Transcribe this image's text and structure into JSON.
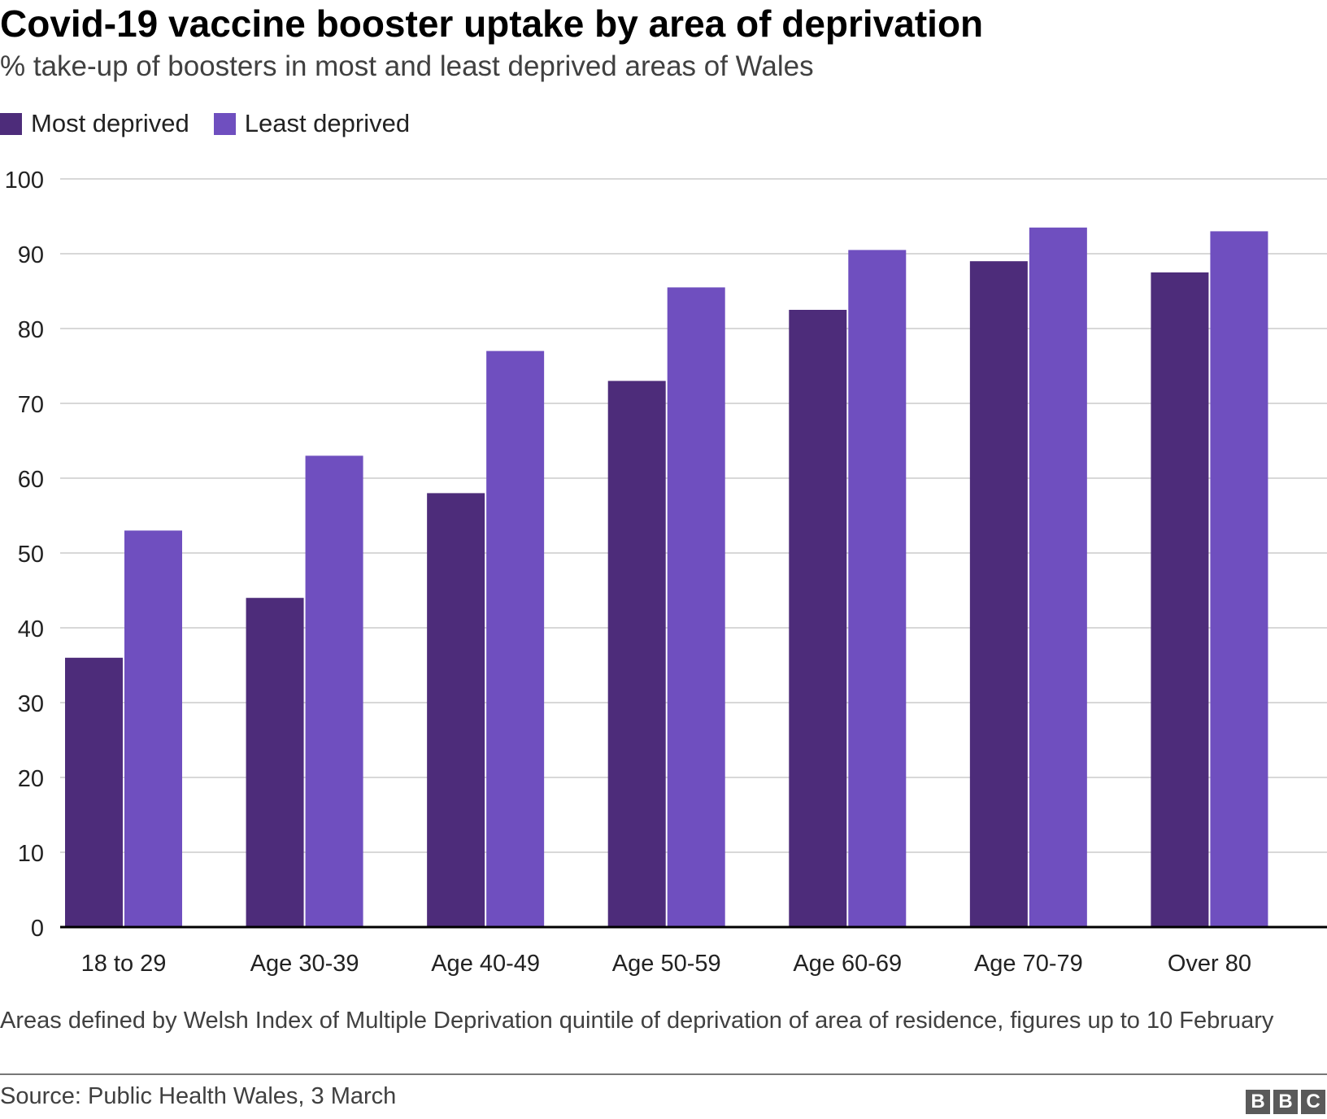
{
  "chart_data": {
    "type": "bar",
    "title": "Covid-19 vaccine booster uptake by area of deprivation",
    "subtitle": "% take-up of boosters in most and least deprived areas of Wales",
    "categories": [
      "18 to 29",
      "Age 30-39",
      "Age 40-49",
      "Age 50-59",
      "Age 60-69",
      "Age 70-79",
      "Over 80"
    ],
    "series": [
      {
        "name": "Most deprived",
        "color": "#4d2c7a",
        "values": [
          36,
          44,
          58,
          73,
          82.5,
          89,
          87.5
        ]
      },
      {
        "name": "Least deprived",
        "color": "#6f4fbf",
        "values": [
          53,
          63,
          77,
          85.5,
          90.5,
          93.5,
          93
        ]
      }
    ],
    "ylim": [
      0,
      100
    ],
    "yticks": [
      0,
      10,
      20,
      30,
      40,
      50,
      60,
      70,
      80,
      90,
      100
    ],
    "grid": true,
    "legend_position": "top-left",
    "xlabel": "",
    "ylabel": ""
  },
  "footer": {
    "note": "Areas defined by Welsh Index of Multiple Deprivation quintile of deprivation of area of residence, figures up to 10 February",
    "source": "Source: Public Health Wales, 3 March",
    "logo_letters": [
      "B",
      "B",
      "C"
    ]
  }
}
